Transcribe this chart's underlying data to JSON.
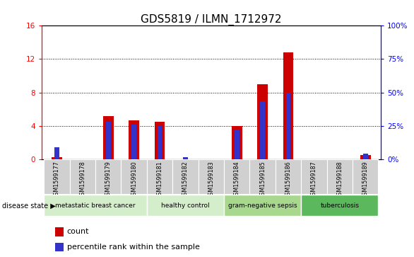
{
  "title": "GDS5819 / ILMN_1712972",
  "samples": [
    "GSM1599177",
    "GSM1599178",
    "GSM1599179",
    "GSM1599180",
    "GSM1599181",
    "GSM1599182",
    "GSM1599183",
    "GSM1599184",
    "GSM1599185",
    "GSM1599186",
    "GSM1599187",
    "GSM1599188",
    "GSM1599189"
  ],
  "count_values": [
    0.3,
    0.0,
    5.2,
    4.7,
    4.5,
    0.0,
    0.0,
    4.0,
    9.0,
    12.8,
    0.0,
    0.0,
    0.5
  ],
  "percentile_values": [
    9.0,
    0.0,
    28.0,
    26.0,
    25.0,
    1.8,
    0.0,
    22.5,
    43.5,
    50.0,
    0.0,
    0.0,
    4.5
  ],
  "left_ylim": [
    0,
    16
  ],
  "right_ylim": [
    0,
    100
  ],
  "left_yticks": [
    0,
    4,
    8,
    12,
    16
  ],
  "right_yticks": [
    0,
    25,
    50,
    75,
    100
  ],
  "right_yticklabels": [
    "0%",
    "25%",
    "50%",
    "75%",
    "100%"
  ],
  "disease_groups": [
    {
      "label": "metastatic breast cancer",
      "start": 0,
      "end": 4
    },
    {
      "label": "healthy control",
      "start": 4,
      "end": 7
    },
    {
      "label": "gram-negative sepsis",
      "start": 7,
      "end": 10
    },
    {
      "label": "tuberculosis",
      "start": 10,
      "end": 13
    }
  ],
  "group_colors": {
    "metastatic breast cancer": "#d4eecb",
    "healthy control": "#d4eecb",
    "gram-negative sepsis": "#a8d88e",
    "tuberculosis": "#5cb85c"
  },
  "bar_color_red": "#cc0000",
  "bar_color_blue": "#3333cc",
  "sample_bg_color": "#d0d0d0",
  "legend_red_label": "count",
  "legend_blue_label": "percentile rank within the sample",
  "disease_state_label": "disease state",
  "title_fontsize": 11,
  "tick_fontsize": 7.5,
  "label_fontsize": 7,
  "legend_fontsize": 8
}
